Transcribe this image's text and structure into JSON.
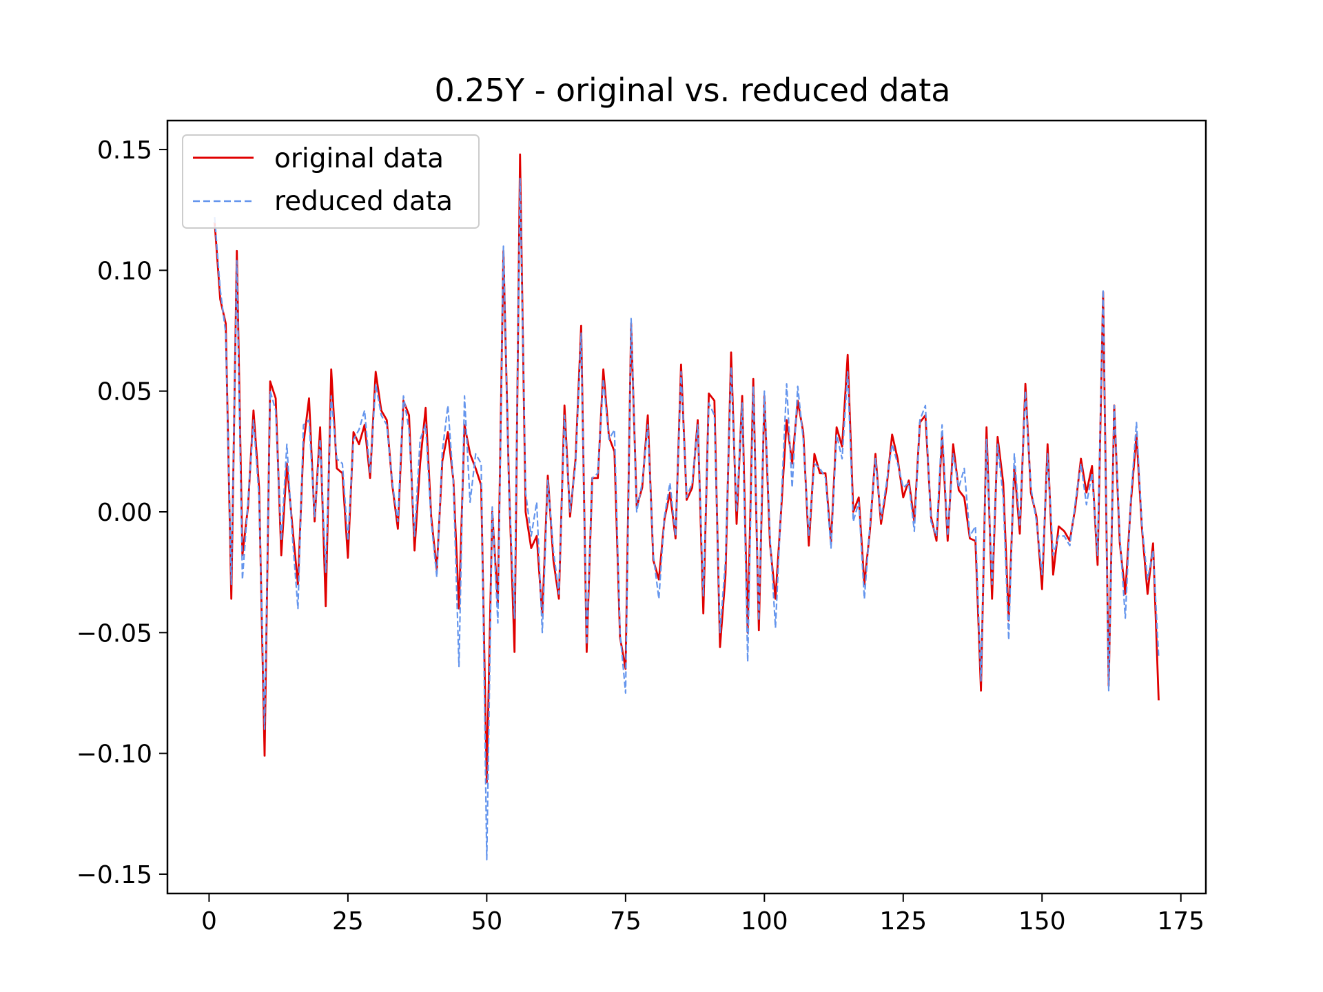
{
  "chart_data": {
    "type": "line",
    "title": "0.25Y - original vs. reduced data",
    "xlabel": "",
    "ylabel": "",
    "xlim": [
      -7.5,
      179.5
    ],
    "ylim": [
      -0.158,
      0.162
    ],
    "x_ticks": [
      "0",
      "25",
      "50",
      "75",
      "100",
      "125",
      "150",
      "175"
    ],
    "y_ticks": [
      "0.15",
      "0.10",
      "0.05",
      "0.00",
      "−0.05",
      "−0.10",
      "−0.15"
    ],
    "x_tick_values": [
      0,
      25,
      50,
      75,
      100,
      125,
      150,
      175
    ],
    "y_tick_values": [
      0.15,
      0.1,
      0.05,
      0.0,
      -0.05,
      -0.1,
      -0.15
    ],
    "grid": false,
    "legend_position": "upper-left",
    "x": [
      1,
      2,
      3,
      4,
      5,
      6,
      7,
      8,
      9,
      10,
      11,
      12,
      13,
      14,
      15,
      16,
      17,
      18,
      19,
      20,
      21,
      22,
      23,
      24,
      25,
      26,
      27,
      28,
      29,
      30,
      31,
      32,
      33,
      34,
      35,
      36,
      37,
      38,
      39,
      40,
      41,
      42,
      43,
      44,
      45,
      46,
      47,
      48,
      49,
      50,
      51,
      52,
      53,
      54,
      55,
      56,
      57,
      58,
      59,
      60,
      61,
      62,
      63,
      64,
      65,
      66,
      67,
      68,
      69,
      70,
      71,
      72,
      73,
      74,
      75,
      76,
      77,
      78,
      79,
      80,
      81,
      82,
      83,
      84,
      85,
      86,
      87,
      88,
      89,
      90,
      91,
      92,
      93,
      94,
      95,
      96,
      97,
      98,
      99,
      100,
      101,
      102,
      103,
      104,
      105,
      106,
      107,
      108,
      109,
      110,
      111,
      112,
      113,
      114,
      115,
      116,
      117,
      118,
      119,
      120,
      121,
      122,
      123,
      124,
      125,
      126,
      127,
      128,
      129,
      130,
      131,
      132,
      133,
      134,
      135,
      136,
      137,
      138,
      139,
      140,
      141,
      142,
      143,
      144,
      145,
      146,
      147,
      148,
      149,
      150,
      151,
      152,
      153,
      154,
      155,
      156,
      157,
      158,
      159,
      160,
      161,
      162,
      163,
      164,
      165,
      166,
      167,
      168,
      169,
      170,
      171
    ],
    "series": [
      {
        "name": "original data",
        "color": "#e00000",
        "dash": "solid",
        "values": [
          0.12,
          0.088,
          0.078,
          -0.036,
          0.108,
          -0.018,
          0.002,
          0.042,
          0.01,
          -0.101,
          0.054,
          0.047,
          -0.018,
          0.02,
          -0.006,
          -0.03,
          0.028,
          0.047,
          -0.004,
          0.035,
          -0.039,
          0.059,
          0.018,
          0.016,
          -0.019,
          0.033,
          0.028,
          0.036,
          0.014,
          0.058,
          0.042,
          0.038,
          0.011,
          -0.007,
          0.046,
          0.04,
          -0.016,
          0.02,
          0.043,
          -0.002,
          -0.024,
          0.021,
          0.033,
          0.013,
          -0.04,
          0.036,
          0.024,
          0.018,
          0.011,
          -0.112,
          0.0,
          -0.038,
          0.108,
          0.012,
          -0.058,
          0.148,
          0.0,
          -0.015,
          -0.01,
          -0.043,
          0.015,
          -0.02,
          -0.036,
          0.044,
          -0.002,
          0.022,
          0.077,
          -0.058,
          0.014,
          0.014,
          0.059,
          0.031,
          0.025,
          -0.052,
          -0.065,
          0.078,
          0.002,
          0.01,
          0.04,
          -0.02,
          -0.028,
          -0.003,
          0.008,
          -0.011,
          0.061,
          0.005,
          0.01,
          0.038,
          -0.042,
          0.049,
          0.046,
          -0.056,
          -0.026,
          0.066,
          -0.005,
          0.048,
          -0.05,
          0.055,
          -0.049,
          0.048,
          -0.013,
          -0.036,
          0.0,
          0.038,
          0.02,
          0.046,
          0.033,
          -0.014,
          0.024,
          0.016,
          0.016,
          -0.013,
          0.035,
          0.027,
          0.065,
          0.0,
          0.006,
          -0.03,
          -0.008,
          0.024,
          -0.005,
          0.01,
          0.032,
          0.022,
          0.006,
          0.013,
          -0.004,
          0.037,
          0.04,
          -0.002,
          -0.012,
          0.032,
          -0.012,
          0.028,
          0.009,
          0.006,
          -0.011,
          -0.012,
          -0.074,
          0.035,
          -0.036,
          0.031,
          0.012,
          -0.045,
          0.019,
          -0.009,
          0.053,
          0.008,
          -0.002,
          -0.032,
          0.028,
          -0.026,
          -0.006,
          -0.008,
          -0.012,
          0.002,
          0.022,
          0.008,
          0.019,
          -0.022,
          0.091,
          -0.072,
          0.044,
          -0.013,
          -0.034,
          0.004,
          0.032,
          -0.007,
          -0.034,
          -0.013,
          -0.078
        ]
      },
      {
        "name": "reduced data",
        "color": "#6495ed",
        "dash": "dashed",
        "values": [
          0.122,
          0.092,
          0.074,
          -0.03,
          0.104,
          -0.028,
          0.004,
          0.038,
          0.006,
          -0.09,
          0.05,
          0.042,
          -0.012,
          0.028,
          -0.01,
          -0.04,
          0.036,
          0.038,
          -0.002,
          0.03,
          -0.025,
          0.048,
          0.022,
          0.02,
          -0.012,
          0.03,
          0.034,
          0.042,
          0.016,
          0.053,
          0.04,
          0.036,
          0.012,
          -0.004,
          0.048,
          0.034,
          -0.01,
          0.03,
          0.036,
          -0.004,
          -0.027,
          0.025,
          0.044,
          0.012,
          -0.064,
          0.048,
          0.004,
          0.024,
          0.02,
          -0.144,
          0.002,
          -0.046,
          0.11,
          0.01,
          -0.044,
          0.138,
          0.008,
          -0.01,
          0.004,
          -0.05,
          0.013,
          -0.016,
          -0.034,
          0.04,
          0.0,
          0.02,
          0.074,
          -0.055,
          0.014,
          0.016,
          0.055,
          0.03,
          0.034,
          -0.05,
          -0.075,
          0.08,
          0.0,
          0.012,
          0.036,
          -0.018,
          -0.036,
          -0.002,
          0.012,
          -0.01,
          0.058,
          0.006,
          0.012,
          0.036,
          -0.035,
          0.045,
          0.04,
          -0.05,
          -0.02,
          0.06,
          0.0,
          0.045,
          -0.062,
          0.052,
          -0.045,
          0.05,
          -0.01,
          -0.048,
          0.002,
          0.053,
          0.01,
          0.052,
          0.03,
          -0.01,
          0.02,
          0.018,
          0.014,
          -0.015,
          0.032,
          0.022,
          0.058,
          -0.004,
          0.004,
          -0.036,
          -0.006,
          0.022,
          -0.003,
          0.012,
          0.028,
          0.02,
          0.01,
          0.012,
          -0.008,
          0.038,
          0.044,
          -0.004,
          -0.01,
          0.036,
          -0.01,
          0.024,
          0.01,
          0.018,
          -0.01,
          -0.006,
          -0.07,
          0.03,
          -0.03,
          0.028,
          0.006,
          -0.053,
          0.024,
          -0.006,
          0.05,
          0.01,
          -0.004,
          -0.026,
          0.024,
          -0.018,
          -0.01,
          -0.01,
          -0.014,
          0.004,
          0.02,
          0.003,
          0.016,
          -0.018,
          0.092,
          -0.074,
          0.044,
          -0.01,
          -0.044,
          0.006,
          0.037,
          -0.006,
          -0.028,
          -0.016,
          -0.06
        ]
      }
    ]
  }
}
